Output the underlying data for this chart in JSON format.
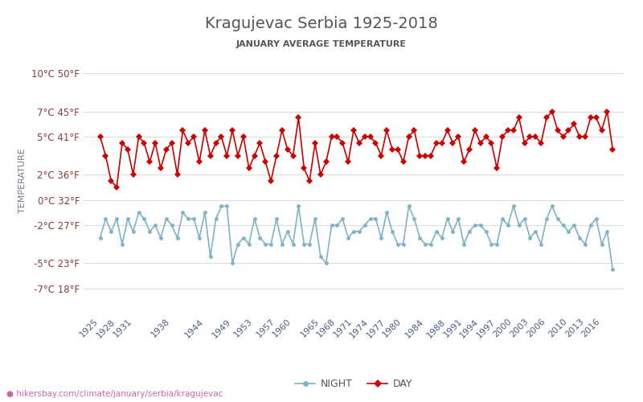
{
  "title": "Kragujevac Serbia 1925-2018",
  "subtitle": "JANUARY AVERAGE TEMPERATURE",
  "ylabel": "TEMPERATURE",
  "url": "hikersbay.com/climate/january/serbia/kragujevac",
  "years": [
    1925,
    1926,
    1927,
    1928,
    1929,
    1930,
    1931,
    1932,
    1933,
    1934,
    1935,
    1936,
    1937,
    1938,
    1939,
    1940,
    1941,
    1942,
    1943,
    1944,
    1945,
    1946,
    1947,
    1948,
    1949,
    1950,
    1951,
    1952,
    1953,
    1954,
    1955,
    1956,
    1957,
    1958,
    1959,
    1960,
    1961,
    1962,
    1963,
    1964,
    1965,
    1966,
    1967,
    1968,
    1969,
    1970,
    1971,
    1972,
    1973,
    1974,
    1975,
    1976,
    1977,
    1978,
    1979,
    1980,
    1981,
    1982,
    1983,
    1984,
    1985,
    1986,
    1987,
    1988,
    1989,
    1990,
    1991,
    1992,
    1993,
    1994,
    1995,
    1996,
    1997,
    1998,
    1999,
    2000,
    2001,
    2002,
    2003,
    2004,
    2005,
    2006,
    2007,
    2008,
    2009,
    2010,
    2011,
    2012,
    2013,
    2014,
    2015,
    2016,
    2017,
    2018
  ],
  "day_temps": [
    5.0,
    3.5,
    1.5,
    1.0,
    4.5,
    4.0,
    2.0,
    5.0,
    4.5,
    3.0,
    4.5,
    2.5,
    4.0,
    4.5,
    2.0,
    5.5,
    4.5,
    5.0,
    3.0,
    5.5,
    3.5,
    4.5,
    5.0,
    3.5,
    5.5,
    3.5,
    5.0,
    2.5,
    3.5,
    4.5,
    3.0,
    1.5,
    3.5,
    5.5,
    4.0,
    3.5,
    6.5,
    2.5,
    1.5,
    4.5,
    2.0,
    3.0,
    5.0,
    5.0,
    4.5,
    3.0,
    5.5,
    4.5,
    5.0,
    5.0,
    4.5,
    3.5,
    5.5,
    4.0,
    4.0,
    3.0,
    5.0,
    5.5,
    3.5,
    3.5,
    3.5,
    4.5,
    4.5,
    5.5,
    4.5,
    5.0,
    3.0,
    4.0,
    5.5,
    4.5,
    5.0,
    4.5,
    2.5,
    5.0,
    5.5,
    5.5,
    6.5,
    4.5,
    5.0,
    5.0,
    4.5,
    6.5,
    7.0,
    5.5,
    5.0,
    5.5,
    6.0,
    5.0,
    5.0,
    6.5,
    6.5,
    5.5,
    7.0,
    4.0
  ],
  "night_temps": [
    -3.0,
    -1.5,
    -2.5,
    -1.5,
    -3.5,
    -1.5,
    -2.5,
    -1.0,
    -1.5,
    -2.5,
    -2.0,
    -3.0,
    -1.5,
    -2.0,
    -3.0,
    -1.0,
    -1.5,
    -1.5,
    -3.0,
    -1.0,
    -4.5,
    -1.5,
    -0.5,
    -0.5,
    -5.0,
    -3.5,
    -3.0,
    -3.5,
    -1.5,
    -3.0,
    -3.5,
    -3.5,
    -1.5,
    -3.5,
    -2.5,
    -3.5,
    -0.5,
    -3.5,
    -3.5,
    -1.5,
    -4.5,
    -5.0,
    -2.0,
    -2.0,
    -1.5,
    -3.0,
    -2.5,
    -2.5,
    -2.0,
    -1.5,
    -1.5,
    -3.0,
    -1.0,
    -2.5,
    -3.5,
    -3.5,
    -0.5,
    -1.5,
    -3.0,
    -3.5,
    -3.5,
    -2.5,
    -3.0,
    -1.5,
    -2.5,
    -1.5,
    -3.5,
    -2.5,
    -2.0,
    -2.0,
    -2.5,
    -3.5,
    -3.5,
    -1.5,
    -2.0,
    -0.5,
    -2.0,
    -1.5,
    -3.0,
    -2.5,
    -3.5,
    -1.5,
    -0.5,
    -1.5,
    -2.0,
    -2.5,
    -2.0,
    -3.0,
    -3.5,
    -2.0,
    -1.5,
    -3.5,
    -2.5,
    -5.5
  ],
  "day_color": "#cc0000",
  "night_color": "#7fb3c8",
  "title_color": "#555555",
  "subtitle_color": "#555555",
  "ylabel_color": "#7a7a8a",
  "tick_color": "#8B3A3A",
  "grid_color": "#dddddd",
  "background_color": "#ffffff",
  "yticks_c": [
    10,
    7,
    5,
    2,
    0,
    -2,
    -5,
    -7
  ],
  "yticks_f": [
    50,
    45,
    41,
    36,
    32,
    27,
    23,
    18
  ],
  "xlabels": [
    1925,
    1928,
    1931,
    1938,
    1944,
    1949,
    1953,
    1957,
    1960,
    1965,
    1968,
    1971,
    1974,
    1977,
    1980,
    1984,
    1988,
    1991,
    1994,
    1997,
    2000,
    2003,
    2006,
    2010,
    2013,
    2016
  ]
}
